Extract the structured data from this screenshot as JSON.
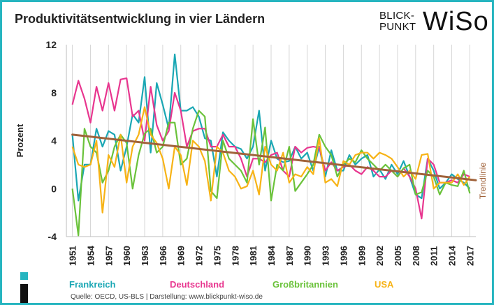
{
  "header": {
    "title": "Produktivitätsentwicklung in vier Ländern",
    "logo_line1": "BLICK-",
    "logo_line2": "PUNKT",
    "logo_word": "WiSo"
  },
  "footer": {
    "source": "Quelle: OECD, US-BLS  |  Darstellung: www.blickpunkt-wiso.de"
  },
  "colors": {
    "frame": "#26b5c0",
    "frankreich": "#1aa7b4",
    "deutschland": "#e8368f",
    "grossbritannien": "#6ac23a",
    "usa": "#f7b316",
    "trend": "#a0623a"
  },
  "chart_data": {
    "type": "line",
    "title": "Produktivitätsentwicklung in vier Ländern",
    "ylabel": "Prozent",
    "xlabel": "",
    "ylim": [
      -4,
      12
    ],
    "yticks": [
      -4,
      0,
      4,
      8,
      12
    ],
    "xlim": [
      1950,
      2018
    ],
    "xtick_labels": [
      "1951",
      "1954",
      "1957",
      "1960",
      "1963",
      "1966",
      "1969",
      "1972",
      "1975",
      "1978",
      "1981",
      "1984",
      "1987",
      "1990",
      "1993",
      "1996",
      "1999",
      "2002",
      "2005",
      "2008",
      "2011",
      "2014",
      "2017"
    ],
    "grid": "vertical lines at year ticks",
    "legend_position": "bottom",
    "x": [
      1951,
      1952,
      1953,
      1954,
      1955,
      1956,
      1957,
      1958,
      1959,
      1960,
      1961,
      1962,
      1963,
      1964,
      1965,
      1966,
      1967,
      1968,
      1969,
      1970,
      1971,
      1972,
      1973,
      1974,
      1975,
      1976,
      1977,
      1978,
      1979,
      1980,
      1981,
      1982,
      1983,
      1984,
      1985,
      1986,
      1987,
      1988,
      1989,
      1990,
      1991,
      1992,
      1993,
      1994,
      1995,
      1996,
      1997,
      1998,
      1999,
      2000,
      2001,
      2002,
      2003,
      2004,
      2005,
      2006,
      2007,
      2008,
      2009,
      2010,
      2011,
      2012,
      2013,
      2014,
      2015,
      2016,
      2017
    ],
    "series": [
      {
        "name": "Frankreich",
        "values": [
          4.5,
          -1.0,
          2.0,
          2.0,
          5.0,
          3.5,
          4.8,
          4.5,
          1.5,
          3.5,
          6.2,
          5.5,
          9.3,
          3.0,
          8.8,
          7.0,
          5.0,
          11.2,
          6.5,
          6.5,
          6.8,
          6.0,
          4.2,
          4.0,
          1.0,
          4.7,
          4.0,
          3.5,
          3.3,
          2.5,
          3.5,
          6.5,
          1.5,
          4.0,
          2.5,
          2.2,
          2.3,
          3.5,
          2.5,
          3.0,
          1.5,
          3.5,
          1.0,
          3.2,
          1.5,
          1.5,
          2.8,
          2.0,
          2.5,
          2.8,
          1.0,
          1.6,
          0.8,
          2.0,
          1.2,
          2.3,
          1.0,
          -0.5,
          -0.8,
          2.5,
          1.5,
          0.0,
          0.5,
          1.2,
          0.8,
          0.5,
          0.0
        ]
      },
      {
        "name": "Deutschland",
        "values": [
          7.0,
          9.0,
          7.5,
          5.5,
          8.5,
          6.5,
          8.8,
          6.5,
          9.1,
          9.2,
          6.0,
          6.5,
          4.0,
          8.5,
          5.3,
          4.0,
          4.8,
          8.0,
          6.5,
          3.5,
          4.8,
          5.0,
          5.0,
          3.5,
          3.5,
          4.5,
          3.5,
          3.5,
          2.5,
          1.0,
          2.5,
          2.5,
          2.2,
          2.8,
          3.0,
          1.5,
          1.0,
          3.5,
          3.0,
          3.4,
          3.5,
          3.4,
          1.5,
          2.2,
          1.5,
          1.8,
          2.0,
          1.5,
          1.2,
          1.8,
          1.5,
          1.0,
          1.0,
          1.5,
          1.0,
          1.7,
          1.0,
          0.0,
          -2.5,
          2.5,
          2.0,
          0.5,
          0.5,
          0.7,
          0.5,
          1.2,
          1.0
        ]
      },
      {
        "name": "Großbritannien",
        "values": [
          0.0,
          -3.9,
          5.0,
          3.5,
          3.0,
          0.5,
          1.5,
          3.5,
          4.5,
          3.8,
          0.0,
          2.8,
          4.6,
          5.0,
          3.0,
          3.5,
          5.5,
          5.5,
          2.0,
          2.5,
          5.0,
          6.5,
          6.0,
          -0.2,
          -0.8,
          4.0,
          2.5,
          2.0,
          1.5,
          0.5,
          5.8,
          2.0,
          5.1,
          -1.0,
          2.0,
          1.5,
          3.5,
          -0.2,
          0.5,
          1.2,
          2.0,
          4.5,
          3.5,
          2.8,
          1.0,
          2.0,
          2.5,
          2.2,
          3.2,
          2.5,
          2.0,
          1.5,
          2.0,
          1.5,
          1.0,
          1.7,
          2.0,
          -0.5,
          -0.3,
          1.5,
          1.0,
          -0.5,
          0.5,
          0.3,
          0.2,
          1.5,
          -0.4
        ]
      },
      {
        "name": "USA",
        "values": [
          3.5,
          2.0,
          1.8,
          2.0,
          4.0,
          -2.0,
          2.8,
          1.8,
          4.5,
          0.5,
          3.5,
          4.5,
          6.8,
          4.5,
          3.8,
          2.5,
          0.0,
          3.5,
          2.8,
          0.3,
          4.0,
          3.5,
          2.3,
          -1.0,
          3.5,
          3.0,
          1.5,
          1.0,
          0.0,
          0.2,
          1.5,
          -0.5,
          3.5,
          2.0,
          1.5,
          3.0,
          0.5,
          1.2,
          1.0,
          1.8,
          1.2,
          4.2,
          0.5,
          0.8,
          0.2,
          2.3,
          2.0,
          2.8,
          3.0,
          3.0,
          2.5,
          3.0,
          2.8,
          2.5,
          1.8,
          1.0,
          1.5,
          0.8,
          2.8,
          2.9,
          0.0,
          0.5,
          0.5,
          0.5,
          1.2,
          0.3,
          1.0
        ]
      },
      {
        "name": "Trendlinie",
        "values_at_x": {
          "1951": 4.5,
          "2018": 0.7
        }
      }
    ]
  }
}
